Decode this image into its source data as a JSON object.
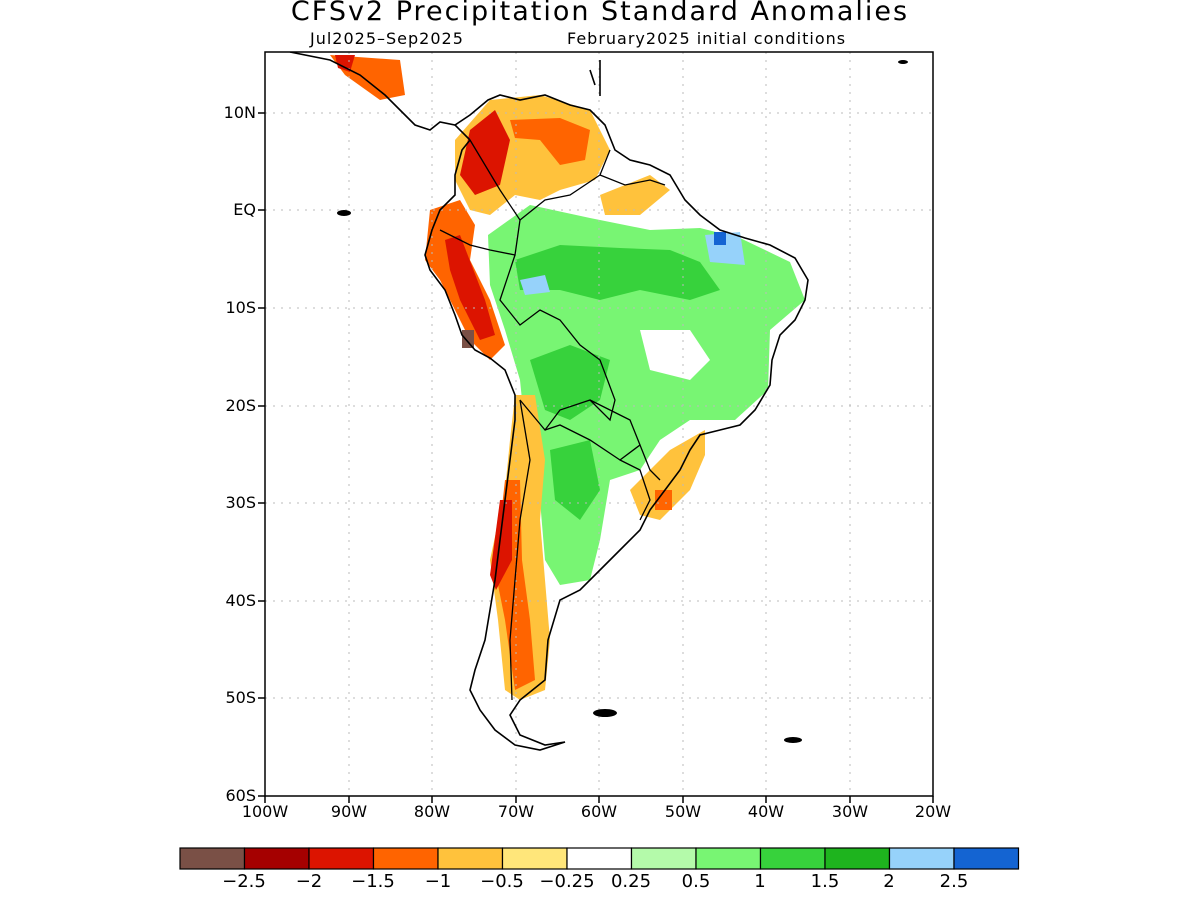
{
  "title": "CFSv2 Precipitation Standard Anomalies",
  "subtitle_left": "Jul2025–Sep2025",
  "subtitle_right": "February2025 initial conditions",
  "axes": {
    "lat_labels": [
      "10N",
      "EQ",
      "10S",
      "20S",
      "30S",
      "40S",
      "50S",
      "60S"
    ],
    "lon_labels": [
      "100W",
      "90W",
      "80W",
      "70W",
      "60W",
      "50W",
      "40W",
      "30W",
      "20W"
    ]
  },
  "colorbar": {
    "colors": [
      "#7a5046",
      "#a50000",
      "#dc1400",
      "#ff6400",
      "#ffc23c",
      "#ffe67a",
      "#ffffff",
      "#b4faaa",
      "#78f573",
      "#37d23c",
      "#1eb41e",
      "#96d2fa",
      "#1464d2"
    ],
    "labels": [
      "−2.5",
      "−2",
      "−1.5",
      "−1",
      "−0.5",
      "−0.25",
      "0.25",
      "0.5",
      "1",
      "1.5",
      "2",
      "2.5"
    ]
  }
}
